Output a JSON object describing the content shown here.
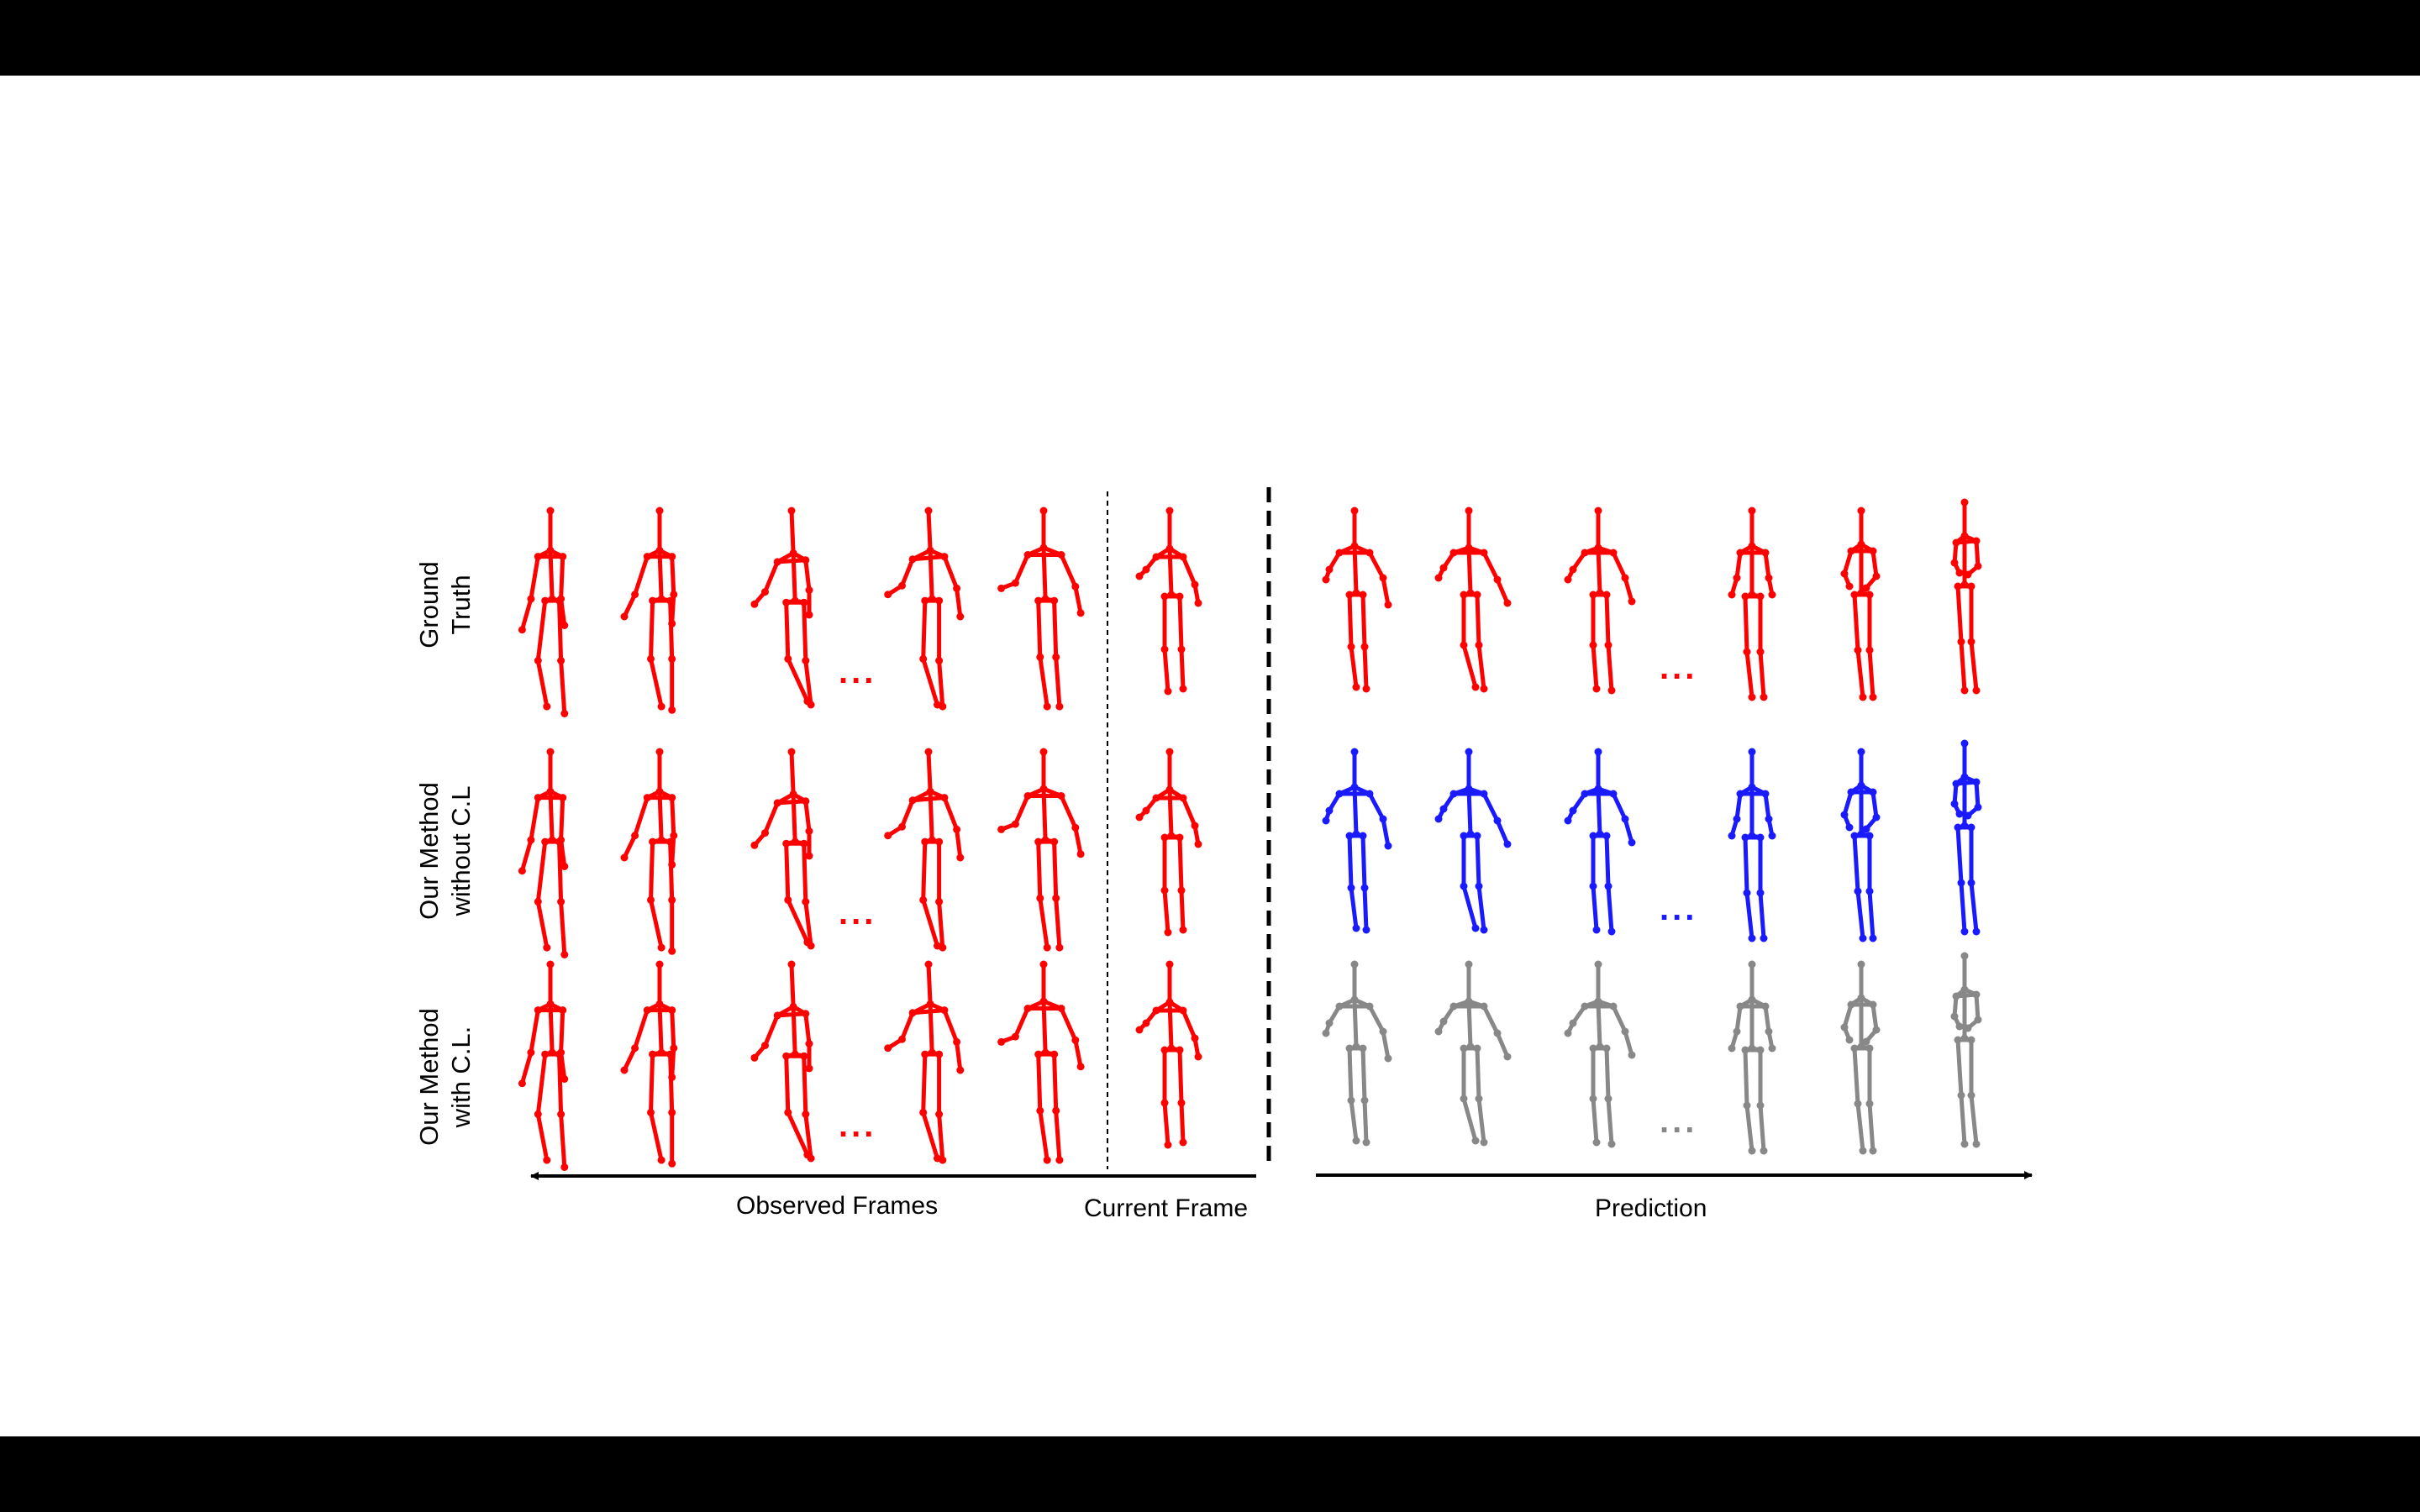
{
  "rows": [
    {
      "id": "ground-truth",
      "label_lines": [
        "Ground",
        "Truth"
      ],
      "prediction_color": "#ff0000"
    },
    {
      "id": "without-cl",
      "label_lines": [
        "Our Method",
        "without C.L"
      ],
      "prediction_color": "#1a1aff"
    },
    {
      "id": "with-cl",
      "label_lines": [
        "Our Method",
        "with C.L."
      ],
      "prediction_color": "#888888"
    }
  ],
  "colors": {
    "observed": "#ff0000",
    "ground_truth": "#ff0000",
    "without_cl": "#1a1aff",
    "with_cl": "#888888"
  },
  "observed_frames_label": "Observed Frames",
  "current_frame_label": "Current  Frame",
  "prediction_label": "Prediction",
  "ellipsis": "..."
}
